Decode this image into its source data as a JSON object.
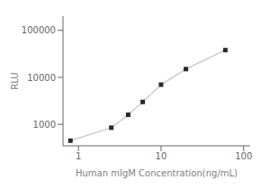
{
  "chart_data": {
    "type": "line",
    "log": true,
    "xlabel": "Human mIgM Concentration(ng/mL)",
    "ylabel": "RLU",
    "x": [
      0.8,
      2.5,
      4.0,
      6.0,
      10.0,
      20.0,
      60.0
    ],
    "series": [
      {
        "type": "line",
        "color": "#cccccc",
        "values": [
          450,
          850,
          1600,
          3000,
          7000,
          15000,
          38000
        ]
      },
      {
        "type": "scatter",
        "color": "#2a2a2a",
        "marker": "square",
        "values": [
          450,
          850,
          1600,
          3000,
          7000,
          15000,
          38000
        ]
      }
    ],
    "xlim": [
      0.65,
      120
    ],
    "ylim": [
      350,
      200000
    ],
    "xticks": [
      1,
      10,
      100
    ],
    "yticks": [
      1000,
      10000,
      100000
    ],
    "grid": false
  }
}
